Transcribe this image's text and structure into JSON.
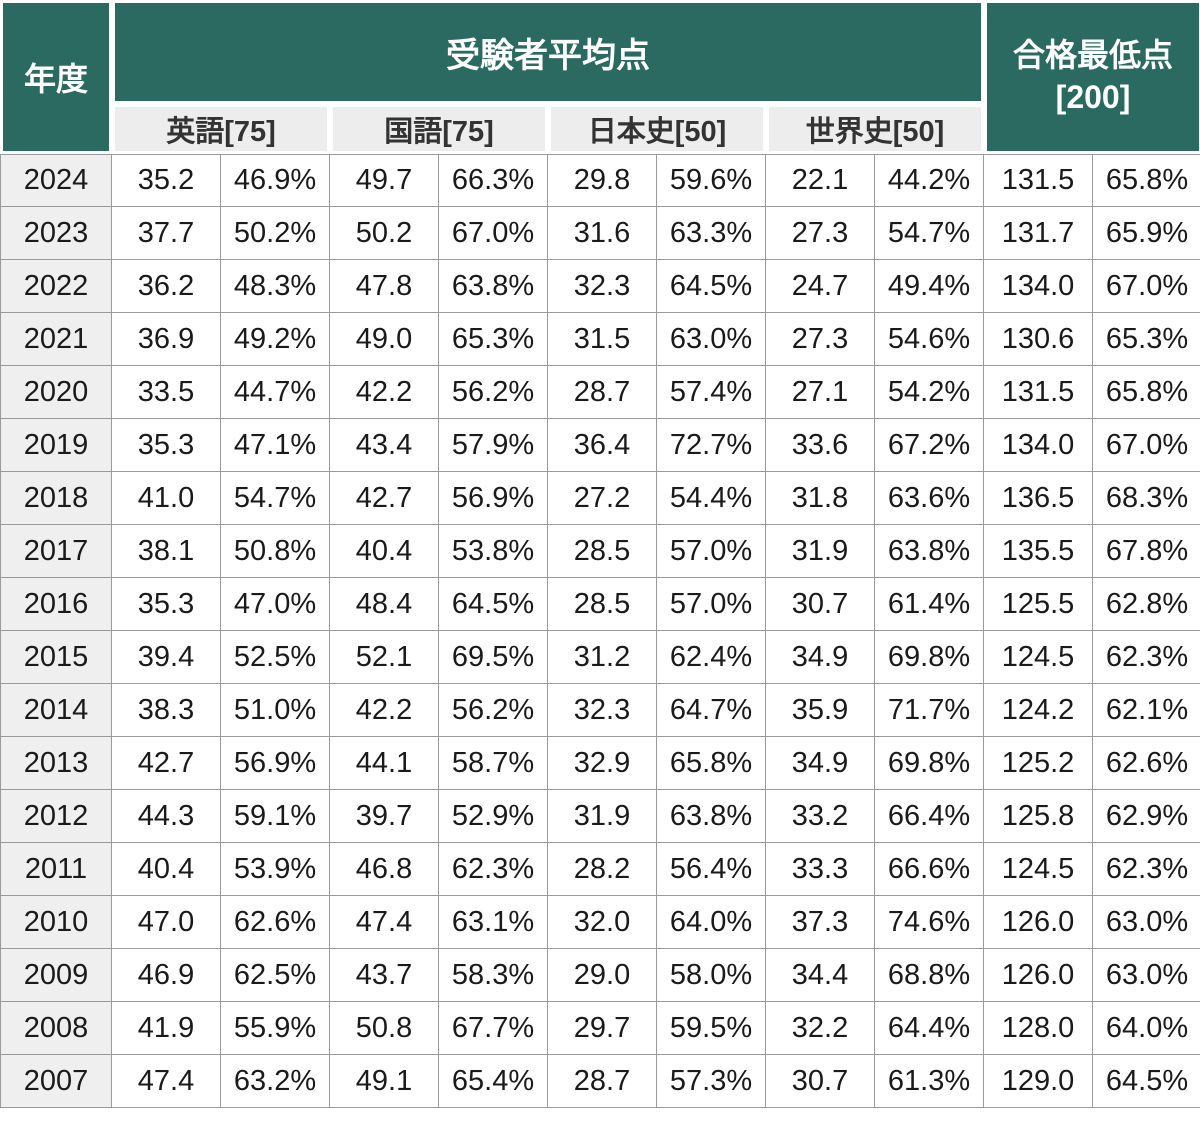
{
  "header": {
    "year": "年度",
    "avg_group": "受験者平均点",
    "min_group_line1": "合格最低点",
    "min_group_line2": "[200]",
    "subjects": [
      "英語[75]",
      "国語[75]",
      "日本史[50]",
      "世界史[50]"
    ]
  },
  "colors": {
    "header_teal": "#2A6A60",
    "subheader_bg": "#EDEDED",
    "year_col_bg": "#EFEFEF",
    "grid_border": "#9A9A9A",
    "data_text": "#1A1A1A",
    "subheader_text": "#333333"
  },
  "chart_data": {
    "type": "table",
    "group_headers": [
      "年度",
      "受験者平均点",
      "合格最低点 [200]"
    ],
    "subject_headers": [
      "英語[75]",
      "国語[75]",
      "日本史[50]",
      "世界史[50]"
    ],
    "row_value_order": "each subject = [average score, percentage], then [minimum passing score, percentage]",
    "rows": [
      {
        "year": "2024",
        "values": [
          "35.2",
          "46.9%",
          "49.7",
          "66.3%",
          "29.8",
          "59.6%",
          "22.1",
          "44.2%",
          "131.5",
          "65.8%"
        ]
      },
      {
        "year": "2023",
        "values": [
          "37.7",
          "50.2%",
          "50.2",
          "67.0%",
          "31.6",
          "63.3%",
          "27.3",
          "54.7%",
          "131.7",
          "65.9%"
        ]
      },
      {
        "year": "2022",
        "values": [
          "36.2",
          "48.3%",
          "47.8",
          "63.8%",
          "32.3",
          "64.5%",
          "24.7",
          "49.4%",
          "134.0",
          "67.0%"
        ]
      },
      {
        "year": "2021",
        "values": [
          "36.9",
          "49.2%",
          "49.0",
          "65.3%",
          "31.5",
          "63.0%",
          "27.3",
          "54.6%",
          "130.6",
          "65.3%"
        ]
      },
      {
        "year": "2020",
        "values": [
          "33.5",
          "44.7%",
          "42.2",
          "56.2%",
          "28.7",
          "57.4%",
          "27.1",
          "54.2%",
          "131.5",
          "65.8%"
        ]
      },
      {
        "year": "2019",
        "values": [
          "35.3",
          "47.1%",
          "43.4",
          "57.9%",
          "36.4",
          "72.7%",
          "33.6",
          "67.2%",
          "134.0",
          "67.0%"
        ]
      },
      {
        "year": "2018",
        "values": [
          "41.0",
          "54.7%",
          "42.7",
          "56.9%",
          "27.2",
          "54.4%",
          "31.8",
          "63.6%",
          "136.5",
          "68.3%"
        ]
      },
      {
        "year": "2017",
        "values": [
          "38.1",
          "50.8%",
          "40.4",
          "53.8%",
          "28.5",
          "57.0%",
          "31.9",
          "63.8%",
          "135.5",
          "67.8%"
        ]
      },
      {
        "year": "2016",
        "values": [
          "35.3",
          "47.0%",
          "48.4",
          "64.5%",
          "28.5",
          "57.0%",
          "30.7",
          "61.4%",
          "125.5",
          "62.8%"
        ]
      },
      {
        "year": "2015",
        "values": [
          "39.4",
          "52.5%",
          "52.1",
          "69.5%",
          "31.2",
          "62.4%",
          "34.9",
          "69.8%",
          "124.5",
          "62.3%"
        ]
      },
      {
        "year": "2014",
        "values": [
          "38.3",
          "51.0%",
          "42.2",
          "56.2%",
          "32.3",
          "64.7%",
          "35.9",
          "71.7%",
          "124.2",
          "62.1%"
        ]
      },
      {
        "year": "2013",
        "values": [
          "42.7",
          "56.9%",
          "44.1",
          "58.7%",
          "32.9",
          "65.8%",
          "34.9",
          "69.8%",
          "125.2",
          "62.6%"
        ]
      },
      {
        "year": "2012",
        "values": [
          "44.3",
          "59.1%",
          "39.7",
          "52.9%",
          "31.9",
          "63.8%",
          "33.2",
          "66.4%",
          "125.8",
          "62.9%"
        ]
      },
      {
        "year": "2011",
        "values": [
          "40.4",
          "53.9%",
          "46.8",
          "62.3%",
          "28.2",
          "56.4%",
          "33.3",
          "66.6%",
          "124.5",
          "62.3%"
        ]
      },
      {
        "year": "2010",
        "values": [
          "47.0",
          "62.6%",
          "47.4",
          "63.1%",
          "32.0",
          "64.0%",
          "37.3",
          "74.6%",
          "126.0",
          "63.0%"
        ]
      },
      {
        "year": "2009",
        "values": [
          "46.9",
          "62.5%",
          "43.7",
          "58.3%",
          "29.0",
          "58.0%",
          "34.4",
          "68.8%",
          "126.0",
          "63.0%"
        ]
      },
      {
        "year": "2008",
        "values": [
          "41.9",
          "55.9%",
          "50.8",
          "67.7%",
          "29.7",
          "59.5%",
          "32.2",
          "64.4%",
          "128.0",
          "64.0%"
        ]
      },
      {
        "year": "2007",
        "values": [
          "47.4",
          "63.2%",
          "49.1",
          "65.4%",
          "28.7",
          "57.3%",
          "30.7",
          "61.3%",
          "129.0",
          "64.5%"
        ]
      }
    ]
  }
}
